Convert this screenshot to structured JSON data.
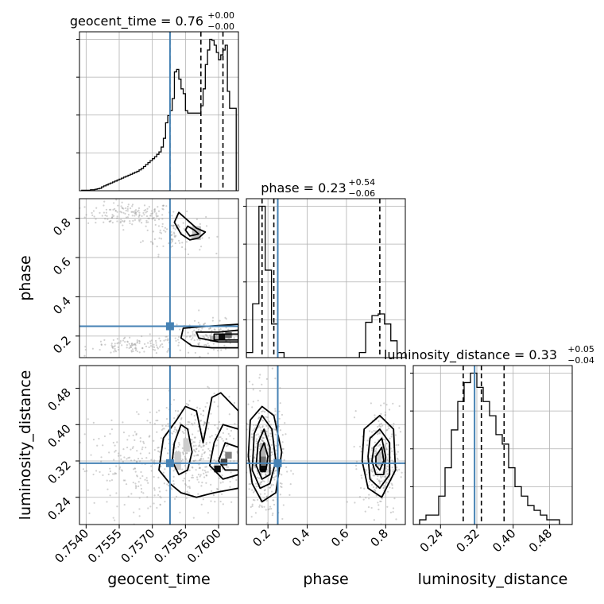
{
  "chart_data": {
    "type": "corner",
    "parameters": [
      {
        "name": "geocent_time",
        "axis_label": "geocent_time",
        "range": [
          0.7537,
          0.7609
        ],
        "ticks": [
          0.754,
          0.7555,
          0.757,
          0.7585,
          0.76
        ],
        "tick_labels": [
          "0.7540",
          "0.7555",
          "0.7570",
          "0.7585",
          "0.7600"
        ],
        "truth": 0.7578,
        "quantiles": [
          0.7578,
          0.7592,
          0.7602
        ],
        "title": {
          "text": "geocent_time = 0.76",
          "plus": "+0.00",
          "minus": "−0.00"
        },
        "histogram": {
          "bin_edges": [
            0.7538,
            0.7539,
            0.754,
            0.7541,
            0.7542,
            0.7543,
            0.7544,
            0.7545,
            0.7546,
            0.7547,
            0.7548,
            0.7549,
            0.755,
            0.7551,
            0.7552,
            0.7553,
            0.7554,
            0.7555,
            0.7556,
            0.7557,
            0.7558,
            0.7559,
            0.756,
            0.7561,
            0.7562,
            0.7563,
            0.7564,
            0.7565,
            0.7566,
            0.7567,
            0.7568,
            0.7569,
            0.757,
            0.7571,
            0.7572,
            0.7573,
            0.7574,
            0.7575,
            0.7576,
            0.7577,
            0.7578,
            0.7579,
            0.758,
            0.7581,
            0.7582,
            0.7583,
            0.7584,
            0.7585,
            0.7586,
            0.7587,
            0.7588,
            0.7589,
            0.759,
            0.7591,
            0.7592,
            0.7593,
            0.7594,
            0.7595,
            0.7596,
            0.7597,
            0.7598,
            0.7599,
            0.76,
            0.7601,
            0.7602,
            0.7603,
            0.7604,
            0.7605,
            0.7606,
            0.7607,
            0.7608
          ],
          "counts": [
            1,
            1,
            1,
            1,
            2,
            2,
            3,
            4,
            5,
            8,
            10,
            12,
            14,
            16,
            18,
            20,
            22,
            24,
            26,
            28,
            30,
            32,
            34,
            36,
            38,
            40,
            43,
            46,
            50,
            54,
            58,
            62,
            66,
            70,
            75,
            80,
            90,
            108,
            140,
            155,
            165,
            190,
            245,
            250,
            230,
            210,
            200,
            165,
            160,
            160,
            160,
            160,
            160,
            160,
            175,
            210,
            260,
            290,
            312,
            310,
            300,
            285,
            270,
            280,
            290,
            300,
            205,
            170,
            170,
            170
          ]
        }
      },
      {
        "name": "phase",
        "axis_label": "phase",
        "range": [
          0.09,
          0.9
        ],
        "ticks": [
          0.2,
          0.4,
          0.6,
          0.8
        ],
        "tick_labels": [
          "0.2",
          "0.4",
          "0.6",
          "0.8"
        ],
        "truth": 0.25,
        "quantiles": [
          0.17,
          0.23,
          0.77
        ],
        "title": {
          "text": "phase = 0.23",
          "plus": "+0.54",
          "minus": "−0.06"
        },
        "histogram": {
          "bin_edges": [
            0.09,
            0.122,
            0.154,
            0.186,
            0.218,
            0.25,
            0.282,
            0.314,
            0.346,
            0.378,
            0.41,
            0.442,
            0.474,
            0.506,
            0.538,
            0.57,
            0.602,
            0.634,
            0.666,
            0.698,
            0.73,
            0.762,
            0.794,
            0.826,
            0.858,
            0.9
          ],
          "counts": [
            30,
            320,
            900,
            520,
            200,
            30,
            0,
            0,
            0,
            0,
            0,
            0,
            0,
            0,
            0,
            0,
            0,
            0,
            30,
            210,
            250,
            260,
            200,
            100,
            0
          ]
        }
      },
      {
        "name": "luminosity_distance",
        "axis_label": "luminosity_distance",
        "range": [
          0.18,
          0.53
        ],
        "ticks": [
          0.24,
          0.32,
          0.4,
          0.48
        ],
        "tick_labels": [
          "0.24",
          "0.32",
          "0.40",
          "0.48"
        ],
        "truth": 0.315,
        "quantiles": [
          0.29,
          0.33,
          0.38
        ],
        "title": {
          "text": "luminosity_distance = 0.33",
          "plus": "+0.05",
          "minus": "−0.04"
        },
        "histogram": {
          "bin_edges": [
            0.18,
            0.194,
            0.208,
            0.222,
            0.236,
            0.25,
            0.264,
            0.278,
            0.292,
            0.306,
            0.32,
            0.334,
            0.348,
            0.362,
            0.376,
            0.39,
            0.404,
            0.418,
            0.432,
            0.446,
            0.46,
            0.474,
            0.488,
            0.502,
            0.516,
            0.53
          ],
          "counts": [
            0,
            5,
            10,
            10,
            30,
            60,
            100,
            130,
            150,
            160,
            145,
            130,
            115,
            95,
            85,
            60,
            40,
            30,
            20,
            15,
            10,
            5,
            5,
            0,
            0
          ]
        }
      }
    ],
    "pairs": [
      {
        "x_param": "geocent_time",
        "y_param": "phase",
        "truth": [
          0.7578,
          0.25
        ],
        "contours": [
          [
            [
              0.7582,
              0.83
            ],
            [
              0.759,
              0.75
            ],
            [
              0.7594,
              0.73
            ],
            [
              0.7591,
              0.7
            ],
            [
              0.7587,
              0.69
            ],
            [
              0.7583,
              0.72
            ],
            [
              0.758,
              0.78
            ]
          ],
          [
            [
              0.7586,
              0.76
            ],
            [
              0.7589,
              0.74
            ],
            [
              0.7591,
              0.72
            ],
            [
              0.7587,
              0.71
            ],
            [
              0.7585,
              0.74
            ]
          ],
          [
            [
              0.7584,
              0.24
            ],
            [
              0.7595,
              0.25
            ],
            [
              0.7609,
              0.26
            ],
            [
              0.7609,
              0.14
            ],
            [
              0.7597,
              0.14
            ],
            [
              0.7588,
              0.15
            ],
            [
              0.7583,
              0.19
            ]
          ],
          [
            [
              0.759,
              0.22
            ],
            [
              0.76,
              0.22
            ],
            [
              0.7609,
              0.23
            ],
            [
              0.7609,
              0.17
            ],
            [
              0.76,
              0.17
            ],
            [
              0.7591,
              0.19
            ]
          ],
          [
            [
              0.7598,
              0.21
            ],
            [
              0.7609,
              0.21
            ],
            [
              0.7609,
              0.18
            ],
            [
              0.7598,
              0.18
            ]
          ]
        ],
        "scatter_clouds": [
          {
            "center": [
              0.756,
              0.82
            ],
            "spread": [
              0.001,
              0.03
            ],
            "n": 150
          },
          {
            "center": [
              0.758,
              0.72
            ],
            "spread": [
              0.0007,
              0.05
            ],
            "n": 90
          },
          {
            "center": [
              0.7595,
              0.2
            ],
            "spread": [
              0.0009,
              0.04
            ],
            "n": 140
          },
          {
            "center": [
              0.7562,
              0.15
            ],
            "spread": [
              0.001,
              0.02
            ],
            "n": 110
          }
        ],
        "density_blocks": [
          {
            "x": [
              0.76,
              0.7603
            ],
            "y": [
              0.18,
              0.21
            ],
            "level": 0.95
          },
          {
            "x": [
              0.7603,
              0.7606
            ],
            "y": [
              0.19,
              0.22
            ],
            "level": 0.6
          },
          {
            "x": [
              0.7596,
              0.76
            ],
            "y": [
              0.17,
              0.2
            ],
            "level": 0.3
          },
          {
            "x": [
              0.7588,
              0.7592
            ],
            "y": [
              0.69,
              0.76
            ],
            "level": 0.25
          }
        ]
      },
      {
        "x_param": "geocent_time",
        "y_param": "luminosity_distance",
        "truth": [
          0.7578,
          0.315
        ],
        "contours": [
          [
            [
              0.7573,
              0.3
            ],
            [
              0.7575,
              0.37
            ],
            [
              0.7581,
              0.41
            ],
            [
              0.7585,
              0.44
            ],
            [
              0.759,
              0.43
            ],
            [
              0.7593,
              0.36
            ],
            [
              0.7597,
              0.46
            ],
            [
              0.7601,
              0.47
            ],
            [
              0.7609,
              0.43
            ],
            [
              0.7609,
              0.26
            ],
            [
              0.7598,
              0.25
            ],
            [
              0.759,
              0.24
            ],
            [
              0.7583,
              0.25
            ],
            [
              0.7578,
              0.27
            ]
          ],
          [
            [
              0.7579,
              0.32
            ],
            [
              0.758,
              0.36
            ],
            [
              0.7583,
              0.4
            ],
            [
              0.7586,
              0.39
            ],
            [
              0.7588,
              0.34
            ],
            [
              0.7586,
              0.3
            ],
            [
              0.7582,
              0.29
            ]
          ],
          [
            [
              0.7596,
              0.31
            ],
            [
              0.7598,
              0.36
            ],
            [
              0.7602,
              0.4
            ],
            [
              0.7609,
              0.39
            ],
            [
              0.7609,
              0.29
            ],
            [
              0.7602,
              0.28
            ]
          ],
          [
            [
              0.76,
              0.32
            ],
            [
              0.7603,
              0.36
            ],
            [
              0.7609,
              0.35
            ],
            [
              0.7609,
              0.3
            ],
            [
              0.7603,
              0.3
            ]
          ]
        ],
        "scatter_clouds": [
          {
            "center": [
              0.7588,
              0.34
            ],
            "spread": [
              0.0012,
              0.06
            ],
            "n": 420
          },
          {
            "center": [
              0.756,
              0.3
            ],
            "spread": [
              0.0012,
              0.05
            ],
            "n": 160
          }
        ],
        "density_blocks": [
          {
            "x": [
              0.7598,
              0.7601
            ],
            "y": [
              0.295,
              0.31
            ],
            "level": 0.95
          },
          {
            "x": [
              0.7601,
              0.7604
            ],
            "y": [
              0.31,
              0.325
            ],
            "level": 0.75
          },
          {
            "x": [
              0.7603,
              0.7606
            ],
            "y": [
              0.325,
              0.34
            ],
            "level": 0.5
          },
          {
            "x": [
              0.758,
              0.7583
            ],
            "y": [
              0.3,
              0.34
            ],
            "level": 0.2
          },
          {
            "x": [
              0.7584,
              0.7587
            ],
            "y": [
              0.34,
              0.37
            ],
            "level": 0.2
          }
        ]
      },
      {
        "x_param": "phase",
        "y_param": "luminosity_distance",
        "truth": [
          0.25,
          0.315
        ],
        "contours": [
          [
            [
              0.11,
              0.41
            ],
            [
              0.17,
              0.44
            ],
            [
              0.23,
              0.42
            ],
            [
              0.27,
              0.34
            ],
            [
              0.24,
              0.25
            ],
            [
              0.17,
              0.23
            ],
            [
              0.12,
              0.27
            ],
            [
              0.1,
              0.33
            ]
          ],
          [
            [
              0.13,
              0.38
            ],
            [
              0.17,
              0.42
            ],
            [
              0.22,
              0.39
            ],
            [
              0.24,
              0.32
            ],
            [
              0.21,
              0.27
            ],
            [
              0.16,
              0.26
            ],
            [
              0.12,
              0.3
            ]
          ],
          [
            [
              0.15,
              0.36
            ],
            [
              0.18,
              0.39
            ],
            [
              0.21,
              0.35
            ],
            [
              0.21,
              0.29
            ],
            [
              0.17,
              0.28
            ],
            [
              0.14,
              0.31
            ]
          ],
          [
            [
              0.16,
              0.34
            ],
            [
              0.18,
              0.36
            ],
            [
              0.2,
              0.33
            ],
            [
              0.19,
              0.3
            ],
            [
              0.16,
              0.3
            ]
          ],
          [
            [
              0.69,
              0.39
            ],
            [
              0.77,
              0.42
            ],
            [
              0.84,
              0.39
            ],
            [
              0.85,
              0.3
            ],
            [
              0.78,
              0.24
            ],
            [
              0.71,
              0.26
            ],
            [
              0.68,
              0.32
            ]
          ],
          [
            [
              0.72,
              0.37
            ],
            [
              0.77,
              0.39
            ],
            [
              0.82,
              0.36
            ],
            [
              0.82,
              0.29
            ],
            [
              0.77,
              0.26
            ],
            [
              0.72,
              0.28
            ],
            [
              0.71,
              0.33
            ]
          ],
          [
            [
              0.74,
              0.35
            ],
            [
              0.78,
              0.37
            ],
            [
              0.8,
              0.33
            ],
            [
              0.79,
              0.29
            ],
            [
              0.75,
              0.29
            ],
            [
              0.73,
              0.32
            ]
          ],
          [
            [
              0.75,
              0.33
            ],
            [
              0.78,
              0.35
            ],
            [
              0.79,
              0.32
            ],
            [
              0.77,
              0.3
            ],
            [
              0.75,
              0.31
            ]
          ]
        ],
        "scatter_clouds": [
          {
            "center": [
              0.18,
              0.32
            ],
            "spread": [
              0.05,
              0.07
            ],
            "n": 380
          },
          {
            "center": [
              0.77,
              0.32
            ],
            "spread": [
              0.05,
              0.06
            ],
            "n": 300
          }
        ],
        "density_blocks": [
          {
            "x": [
              0.16,
              0.19
            ],
            "y": [
              0.295,
              0.31
            ],
            "level": 0.95
          },
          {
            "x": [
              0.16,
              0.19
            ],
            "y": [
              0.31,
              0.33
            ],
            "level": 0.55
          },
          {
            "x": [
              0.16,
              0.19
            ],
            "y": [
              0.33,
              0.36
            ],
            "level": 0.3
          },
          {
            "x": [
              0.75,
              0.78
            ],
            "y": [
              0.31,
              0.34
            ],
            "level": 0.2
          }
        ]
      }
    ],
    "colors": {
      "truth": "#4682b4",
      "contour": "#000000",
      "scatter": "#9a9a9a",
      "grid": "#b0b0b0",
      "histogram": "#000000"
    },
    "grid": true
  }
}
